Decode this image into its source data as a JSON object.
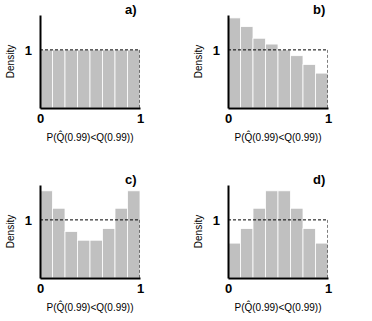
{
  "chart_data": [
    {
      "type": "histogram",
      "title": "a)",
      "x_label": "P(Q̂(0.99)<Q(0.99))",
      "y_label": "Density",
      "bins": [
        0,
        0.125,
        0.25,
        0.375,
        0.5,
        0.625,
        0.75,
        0.875,
        1
      ],
      "values": [
        1,
        1,
        1,
        1,
        1,
        1,
        1,
        1
      ],
      "color": "#c0c0c0",
      "reference_density": 1,
      "xlim": [
        0,
        1
      ],
      "ylim": [
        0,
        1.6
      ],
      "xticks": [
        0,
        1
      ],
      "yticks": [
        1
      ]
    },
    {
      "type": "histogram",
      "title": "b)",
      "x_label": "P(Q̂(0.99)<Q(0.99))",
      "y_label": "Density",
      "bins": [
        0,
        0.125,
        0.25,
        0.375,
        0.5,
        0.625,
        0.75,
        0.875,
        1
      ],
      "values": [
        1.55,
        1.4,
        1.2,
        1.1,
        1.0,
        0.9,
        0.75,
        0.6
      ],
      "color": "#c0c0c0",
      "reference_density": 1,
      "xlim": [
        0,
        1
      ],
      "ylim": [
        0,
        1.6
      ],
      "xticks": [
        0,
        1
      ],
      "yticks": [
        1
      ]
    },
    {
      "type": "histogram",
      "title": "c)",
      "x_label": "P(Q̂(0.99)<Q(0.99))",
      "y_label": "Density",
      "bins": [
        0,
        0.125,
        0.25,
        0.375,
        0.5,
        0.625,
        0.75,
        0.875,
        1
      ],
      "values": [
        1.5,
        1.2,
        0.8,
        0.65,
        0.65,
        0.85,
        1.2,
        1.5
      ],
      "color": "#c0c0c0",
      "reference_density": 1,
      "xlim": [
        0,
        1
      ],
      "ylim": [
        0,
        1.6
      ],
      "xticks": [
        0,
        1
      ],
      "yticks": [
        1
      ]
    },
    {
      "type": "histogram",
      "title": "d)",
      "x_label": "P(Q̂(0.99)<Q(0.99))",
      "y_label": "Density",
      "bins": [
        0,
        0.125,
        0.25,
        0.375,
        0.5,
        0.625,
        0.75,
        0.875,
        1
      ],
      "values": [
        0.6,
        0.85,
        1.2,
        1.5,
        1.5,
        1.2,
        0.85,
        0.6
      ],
      "color": "#c0c0c0",
      "reference_density": 1,
      "xlim": [
        0,
        1
      ],
      "ylim": [
        0,
        1.6
      ],
      "xticks": [
        0,
        1
      ],
      "yticks": [
        1
      ]
    }
  ]
}
